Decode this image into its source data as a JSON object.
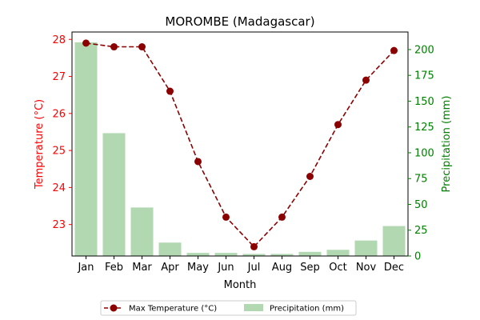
{
  "chart_data": {
    "type": "bar+line",
    "title": "MOROMBE (Madagascar)",
    "xlabel": "Month",
    "categories": [
      "Jan",
      "Feb",
      "Mar",
      "Apr",
      "May",
      "Jun",
      "Jul",
      "Aug",
      "Sep",
      "Oct",
      "Nov",
      "Dec"
    ],
    "left_axis": {
      "label": "Temperature (°C)",
      "ylim": [
        22.15,
        28.2
      ],
      "ticks": [
        23,
        24,
        25,
        26,
        27,
        28
      ],
      "color": "#ff0000"
    },
    "right_axis": {
      "label": "Precipitation (mm)",
      "ylim": [
        0,
        217
      ],
      "ticks": [
        0,
        25,
        50,
        75,
        100,
        125,
        150,
        175,
        200
      ],
      "color": "#008000"
    },
    "series": [
      {
        "name": "Max Temperature (°C)",
        "axis": "left",
        "kind": "line",
        "style": "dashed",
        "marker": "circle",
        "color": "#8b0000",
        "values": [
          27.9,
          27.8,
          27.8,
          26.6,
          24.7,
          23.2,
          22.4,
          23.2,
          24.3,
          25.7,
          26.9,
          27.7
        ]
      },
      {
        "name": "Precipitation (mm)",
        "axis": "right",
        "kind": "bar",
        "color": "#b2d8b2",
        "values": [
          207,
          119,
          47,
          13,
          3,
          3,
          2,
          2,
          4,
          6,
          15,
          29
        ]
      }
    ],
    "legend_position": "bottom-center",
    "grid": false
  }
}
